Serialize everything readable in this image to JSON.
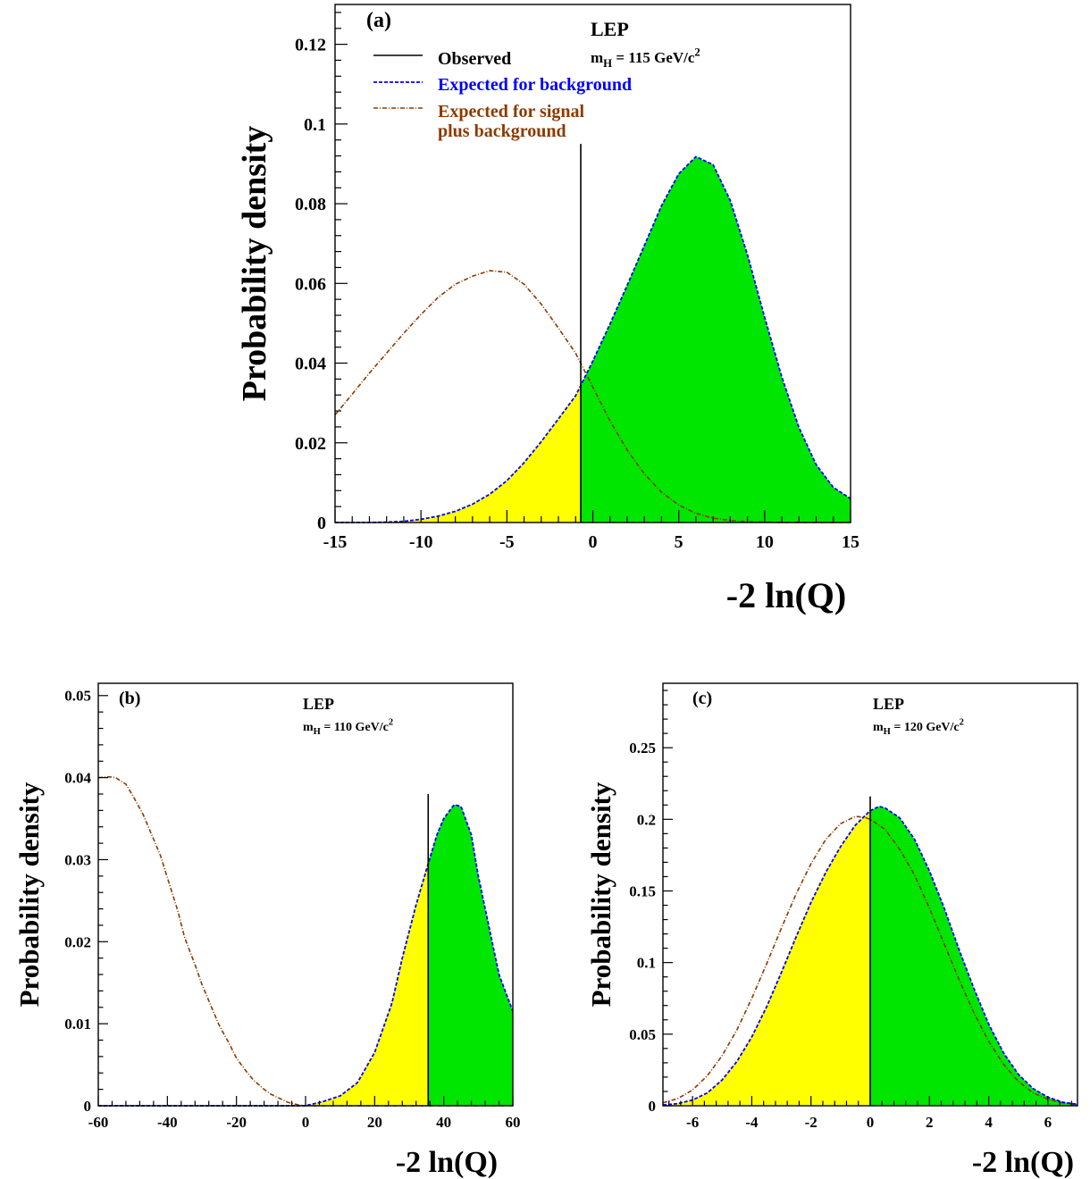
{
  "chart_data": [
    {
      "type": "line",
      "panel": "(a)",
      "experiment": "LEP",
      "mass_main": "m",
      "mass_sub": "H",
      "mass_value": " = 115 GeV/c",
      "mass_sup": "2",
      "xlabel": "-2 ln(Q)",
      "ylabel": "Probability density",
      "xlim": [
        -15,
        15
      ],
      "ylim": [
        0,
        0.13
      ],
      "xticks": [
        -15,
        -10,
        -5,
        0,
        5,
        10,
        15
      ],
      "xtick_labels": [
        "-15",
        "-10",
        "-5",
        "0",
        "5",
        "10",
        "15"
      ],
      "yticks": [
        0,
        0.02,
        0.04,
        0.06,
        0.08,
        0.1,
        0.12
      ],
      "ytick_labels": [
        "0",
        "0.02",
        "0.04",
        "0.06",
        "0.08",
        "0.1",
        "0.12"
      ],
      "observed": -0.7,
      "observed_top": 0.095,
      "legend_labels": [
        "Observed",
        "Expected for background",
        "Expected for signal",
        "plus background"
      ],
      "colors": {
        "observed": "#000000",
        "background": "#0000ff",
        "signal": "#8b3a00",
        "fill_left": "#ffff00",
        "fill_right": "#00e600"
      },
      "series": [
        {
          "name": "Expected for background",
          "x": [
            -15,
            -14,
            -13,
            -12,
            -11,
            -10,
            -9,
            -8,
            -7,
            -6,
            -5,
            -4,
            -3,
            -2,
            -1,
            0,
            1,
            2,
            3,
            4,
            5,
            6,
            7,
            8,
            9,
            10,
            11,
            12,
            13,
            14,
            15
          ],
          "y": [
            0,
            0,
            0,
            0.0001,
            0.0003,
            0.0008,
            0.0016,
            0.0028,
            0.0046,
            0.0071,
            0.0105,
            0.015,
            0.0203,
            0.026,
            0.0318,
            0.0405,
            0.0498,
            0.0595,
            0.0695,
            0.0795,
            0.0875,
            0.0918,
            0.0898,
            0.0808,
            0.0672,
            0.0515,
            0.0365,
            0.0238,
            0.0145,
            0.0088,
            0.006
          ]
        },
        {
          "name": "Expected for signal plus background",
          "x": [
            -15,
            -14,
            -13,
            -12,
            -11,
            -10,
            -9,
            -8,
            -7,
            -6,
            -5,
            -4,
            -3,
            -2,
            -1,
            0,
            1,
            2,
            3,
            4,
            5,
            6,
            7,
            8,
            9,
            10,
            11,
            12,
            13,
            14,
            15
          ],
          "y": [
            0.027,
            0.0322,
            0.0375,
            0.0425,
            0.0475,
            0.0522,
            0.0565,
            0.0598,
            0.0618,
            0.0632,
            0.0628,
            0.0598,
            0.0548,
            0.0488,
            0.0425,
            0.034,
            0.0255,
            0.0182,
            0.0122,
            0.0076,
            0.0044,
            0.0023,
            0.0011,
            0.0005,
            0.0002,
            0.0001,
            0,
            0,
            0,
            0,
            0
          ]
        }
      ]
    },
    {
      "type": "line",
      "panel": "(b)",
      "experiment": "LEP",
      "mass_main": "m",
      "mass_sub": "H",
      "mass_value": " = 110 GeV/c",
      "mass_sup": "2",
      "xlabel": "-2 ln(Q)",
      "ylabel": "Probability density",
      "xlim": [
        -60,
        60
      ],
      "ylim": [
        0,
        0.0515
      ],
      "xticks": [
        -60,
        -40,
        -20,
        0,
        20,
        40,
        60
      ],
      "xtick_labels": [
        "-60",
        "-40",
        "-20",
        "0",
        "20",
        "40",
        "60"
      ],
      "yticks": [
        0,
        0.01,
        0.02,
        0.03,
        0.04,
        0.05
      ],
      "ytick_labels": [
        "0",
        "0.01",
        "0.02",
        "0.03",
        "0.04",
        "0.05"
      ],
      "observed": 35.5,
      "observed_top": 0.038,
      "series": [
        {
          "name": "Expected for background",
          "x": [
            -60,
            -50,
            -40,
            -30,
            -20,
            -10,
            0,
            5,
            10,
            15,
            20,
            25,
            28,
            32,
            35.5,
            38,
            40,
            43,
            45,
            48,
            50,
            53,
            56,
            60
          ],
          "y": [
            0,
            0,
            0,
            0,
            0,
            0,
            0,
            0.0005,
            0.0012,
            0.0028,
            0.0065,
            0.0125,
            0.018,
            0.0245,
            0.0295,
            0.033,
            0.035,
            0.0367,
            0.0365,
            0.033,
            0.028,
            0.022,
            0.016,
            0.0115
          ]
        },
        {
          "name": "Expected for signal plus background",
          "x": [
            -60,
            -57,
            -55,
            -52,
            -50,
            -47,
            -45,
            -42,
            -40,
            -37,
            -35,
            -32,
            -30,
            -27,
            -25,
            -22,
            -20,
            -17,
            -15,
            -12,
            -10,
            -7,
            -5,
            -2,
            0,
            5,
            10
          ],
          "y": [
            0.04,
            0.0401,
            0.04,
            0.0392,
            0.0378,
            0.0355,
            0.0335,
            0.0305,
            0.0278,
            0.0238,
            0.0205,
            0.0172,
            0.0148,
            0.0118,
            0.0098,
            0.0075,
            0.0058,
            0.0041,
            0.0031,
            0.002,
            0.0014,
            0.0008,
            0.0004,
            0.0001,
            0,
            0,
            0
          ]
        }
      ]
    },
    {
      "type": "line",
      "panel": "(c)",
      "experiment": "LEP",
      "mass_main": "m",
      "mass_sub": "H",
      "mass_value": " = 120 GeV/c",
      "mass_sup": "2",
      "xlabel": "-2 ln(Q)",
      "ylabel": "Probability density",
      "xlim": [
        -7,
        7
      ],
      "ylim": [
        0,
        0.295
      ],
      "xticks": [
        -6,
        -4,
        -2,
        0,
        2,
        4,
        6
      ],
      "xtick_labels": [
        "-6",
        "-4",
        "-2",
        "0",
        "2",
        "4",
        "6"
      ],
      "yticks": [
        0,
        0.05,
        0.1,
        0.15,
        0.2,
        0.25
      ],
      "ytick_labels": [
        "0",
        "0.05",
        "0.1",
        "0.15",
        "0.2",
        "0.25"
      ],
      "observed": 0,
      "observed_top": 0.216,
      "series": [
        {
          "name": "Expected for background",
          "x": [
            -7,
            -6.5,
            -6,
            -5.5,
            -5,
            -4.5,
            -4,
            -3.5,
            -3,
            -2.5,
            -2,
            -1.5,
            -1,
            -0.5,
            0,
            0.3,
            0.5,
            1,
            1.5,
            2,
            2.5,
            3,
            3.5,
            4,
            4.5,
            5,
            5.5,
            6,
            6.5,
            7
          ],
          "y": [
            0.0005,
            0.0015,
            0.004,
            0.009,
            0.018,
            0.031,
            0.048,
            0.069,
            0.093,
            0.118,
            0.142,
            0.163,
            0.181,
            0.196,
            0.206,
            0.209,
            0.208,
            0.201,
            0.186,
            0.164,
            0.138,
            0.109,
            0.082,
            0.057,
            0.037,
            0.022,
            0.012,
            0.006,
            0.0025,
            0.001
          ]
        },
        {
          "name": "Expected for signal plus background",
          "x": [
            -7,
            -6.5,
            -6,
            -5.5,
            -5,
            -4.5,
            -4,
            -3.5,
            -3,
            -2.5,
            -2,
            -1.5,
            -1,
            -0.5,
            -0.2,
            0,
            0.5,
            1,
            1.5,
            2,
            2.5,
            3,
            3.5,
            4,
            4.5,
            5,
            5.5,
            6,
            6.5,
            7
          ],
          "y": [
            0.002,
            0.005,
            0.011,
            0.021,
            0.035,
            0.053,
            0.075,
            0.099,
            0.124,
            0.148,
            0.169,
            0.186,
            0.197,
            0.202,
            0.2015,
            0.2,
            0.193,
            0.179,
            0.161,
            0.138,
            0.113,
            0.088,
            0.065,
            0.045,
            0.029,
            0.017,
            0.009,
            0.0045,
            0.002,
            0.0008
          ]
        }
      ]
    }
  ]
}
